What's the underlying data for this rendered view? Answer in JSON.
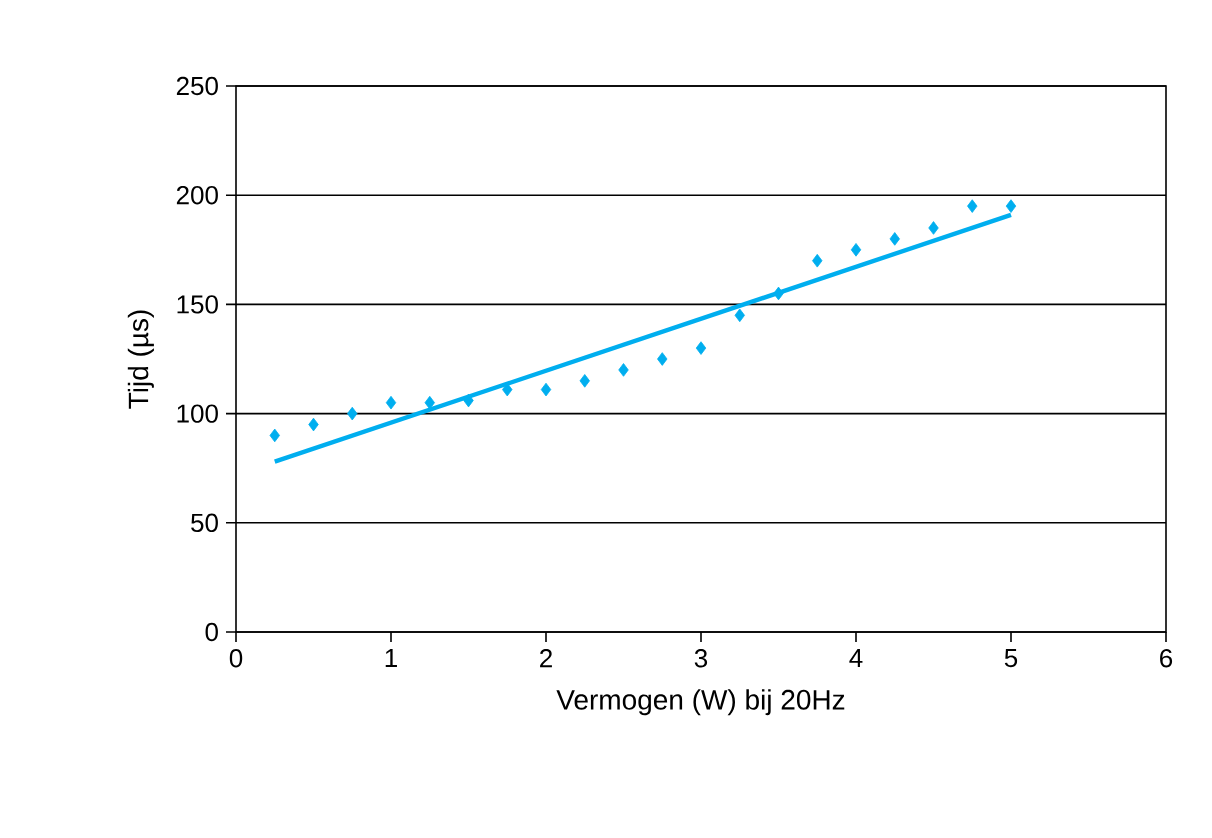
{
  "chart_data": {
    "type": "scatter",
    "xlabel": "Vermogen (W) bij 20Hz",
    "ylabel": "Tijd (µs)",
    "xlim": [
      0,
      6
    ],
    "ylim": [
      0,
      250
    ],
    "xticks": [
      0,
      1,
      2,
      3,
      4,
      5,
      6
    ],
    "yticks": [
      0,
      50,
      100,
      150,
      200,
      250
    ],
    "grid": "y",
    "series": [
      {
        "marker": "diamond",
        "color": "#00aeef",
        "x": [
          0.25,
          0.5,
          0.75,
          1,
          1.25,
          1.5,
          1.75,
          2,
          2.25,
          2.5,
          2.75,
          3,
          3.25,
          3.5,
          3.75,
          4,
          4.25,
          4.5,
          4.75,
          5
        ],
        "values": [
          90,
          95,
          100,
          105,
          105,
          106,
          111,
          111,
          115,
          120,
          125,
          130,
          145,
          155,
          170,
          175,
          180,
          185,
          195,
          195
        ]
      },
      {
        "type": "line",
        "marker": "none",
        "color": "#00aeef",
        "x": [
          0.25,
          5
        ],
        "values": [
          78,
          191
        ]
      }
    ]
  }
}
